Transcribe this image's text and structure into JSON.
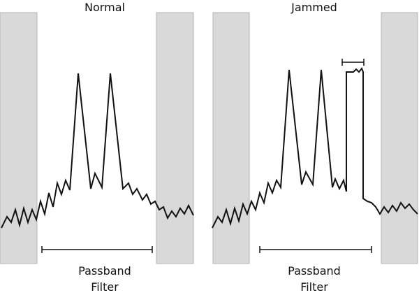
{
  "panels": [
    {
      "title": "Normal",
      "passband_line1": "Passband",
      "passband_line2": "Filter"
    },
    {
      "title": "Jammed",
      "passband_line1": "Passband",
      "passband_line2": "Filter"
    }
  ],
  "colors": {
    "stopband_fill": "#d9d9d9",
    "stopband_stroke": "#b5b5b5",
    "trace": "#111111"
  }
}
